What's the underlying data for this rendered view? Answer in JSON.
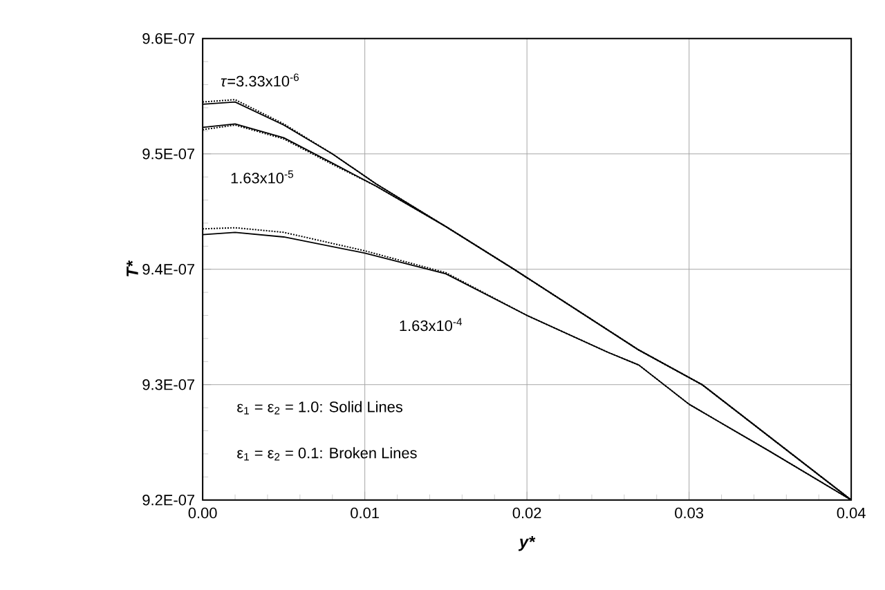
{
  "chart_data": {
    "type": "line",
    "xlabel": "y*",
    "ylabel": "T*",
    "x": [
      0,
      0.002,
      0.005,
      0.008,
      0.0107,
      0.015,
      0.0192,
      0.0269,
      0.0308,
      0.04
    ],
    "series": [
      {
        "color": "#000000",
        "line_style": "solid",
        "values": [
          9.543e-07,
          9.545e-07,
          9.525e-07,
          9.5e-07,
          9.474e-07,
          9.437e-07,
          9.4e-07,
          9.33e-07,
          9.3e-07,
          9.2e-07
        ]
      },
      {
        "color": "#000000",
        "line_style": "dotted",
        "values": [
          9.545e-07,
          9.547e-07,
          9.526e-07,
          9.5e-07,
          9.474e-07,
          9.437e-07,
          9.4e-07,
          9.33e-07,
          9.3e-07,
          9.2e-07
        ]
      },
      {
        "color": "#000000",
        "line_style": "solid",
        "values": [
          9.523e-07,
          9.526e-07,
          9.514e-07,
          9.492e-07,
          9.472e-07,
          9.437e-07,
          9.4e-07,
          9.33e-07,
          9.3e-07,
          9.2e-07
        ]
      },
      {
        "color": "#000000",
        "line_style": "dotted",
        "values": [
          9.521e-07,
          9.525e-07,
          9.513e-07,
          9.491e-07,
          9.472e-07,
          9.437e-07,
          9.4e-07,
          9.33e-07,
          9.3e-07,
          9.2e-07
        ]
      },
      {
        "color": "#000000",
        "line_style": "solid",
        "x": [
          0,
          0.002,
          0.005,
          0.01,
          0.015,
          0.02,
          0.025,
          0.0269,
          0.03,
          0.035,
          0.04
        ],
        "values": [
          9.43e-07,
          9.432e-07,
          9.428e-07,
          9.414e-07,
          9.396e-07,
          9.36e-07,
          9.328e-07,
          9.317e-07,
          9.283e-07,
          9.242e-07,
          9.2e-07
        ]
      },
      {
        "color": "#000000",
        "line_style": "dotted",
        "x": [
          0,
          0.002,
          0.005,
          0.01,
          0.015,
          0.02,
          0.025,
          0.0269,
          0.03,
          0.035,
          0.04
        ],
        "values": [
          9.435e-07,
          9.436e-07,
          9.432e-07,
          9.416e-07,
          9.397e-07,
          9.36e-07,
          9.328e-07,
          9.317e-07,
          9.283e-07,
          9.242e-07,
          9.2e-07
        ]
      }
    ],
    "xlim": [
      0,
      0.04
    ],
    "ylim": [
      9.2e-07,
      9.6e-07
    ],
    "xticks": [
      {
        "value": 0,
        "label": "0.00"
      },
      {
        "value": 0.01,
        "label": "0.01"
      },
      {
        "value": 0.02,
        "label": "0.02"
      },
      {
        "value": 0.03,
        "label": "0.03"
      },
      {
        "value": 0.04,
        "label": "0.04"
      }
    ],
    "yticks": [
      {
        "value": 9.2e-07,
        "label": "9.2E-07"
      },
      {
        "value": 9.3e-07,
        "label": "9.3E-07"
      },
      {
        "value": 9.4e-07,
        "label": "9.4E-07"
      },
      {
        "value": 9.5e-07,
        "label": "9.5E-07"
      },
      {
        "value": 9.6e-07,
        "label": "9.6E-07"
      }
    ],
    "grid": true,
    "marker": "none",
    "annotations": [
      "*τ*=3.33x10$^{-6}$",
      "1.63x10$^{-5}$",
      "1.63x10$^{-4}$",
      "ε$_{1}$ = ε$_{2}$ = 1.0: Solid Lines",
      "ε$_{1}$ = ε$_{2}$ = 0.1: Broken Lines"
    ]
  }
}
